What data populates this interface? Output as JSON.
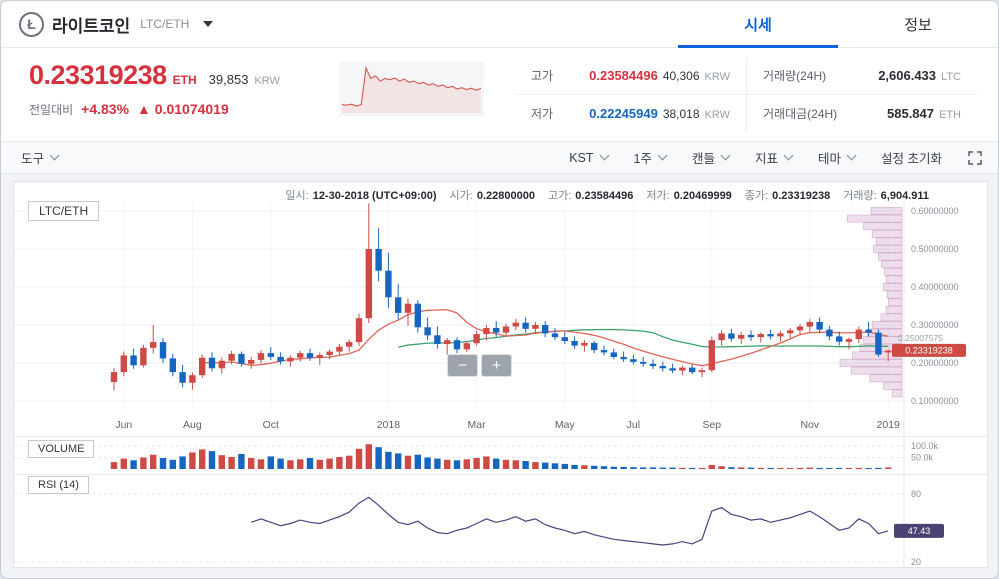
{
  "header": {
    "coin_icon": "Ł",
    "coin_name": "라이트코인",
    "pair": "LTC/ETH",
    "tabs": [
      {
        "label": "시세"
      },
      {
        "label": "정보"
      }
    ]
  },
  "summary": {
    "price": "0.23319238",
    "price_unit": "ETH",
    "price_krw": "39,853",
    "price_krw_unit": "KRW",
    "change_label": "전일대비",
    "change_percent": "+4.83%",
    "change_amount": "▲ 0.01074019",
    "stats": {
      "high_label": "고가",
      "high_value": "0.23584496",
      "high_krw": "40,306",
      "high_krw_unit": "KRW",
      "low_label": "저가",
      "low_value": "0.22245949",
      "low_krw": "38,018",
      "low_krw_unit": "KRW",
      "volume_label": "거래량(24H)",
      "volume_value": "2,606.433",
      "volume_unit": "LTC",
      "turnover_label": "거래대금(24H)",
      "turnover_value": "585.847",
      "turnover_unit": "ETH"
    }
  },
  "toolbar": {
    "tools": "도구",
    "timezone": "KST",
    "interval": "1주",
    "candle_type": "캔들",
    "indicators": "지표",
    "theme": "테마",
    "reset": "설정 초기화"
  },
  "zoom": {
    "out": "−",
    "in": "+"
  },
  "chart_header": {
    "pair_tag": "LTC/ETH",
    "items": [
      {
        "label": "일시:",
        "value": "12-30-2018 (UTC+09:00)"
      },
      {
        "label": "시가:",
        "value": "0.22800000"
      },
      {
        "label": "고가:",
        "value": "0.23584496"
      },
      {
        "label": "저가:",
        "value": "0.20469999"
      },
      {
        "label": "종가:",
        "value": "0.23319238"
      },
      {
        "label": "거래량:",
        "value": "6,904.911"
      }
    ]
  },
  "panels": {
    "volume_label": "VOLUME",
    "rsi_label": "RSI (14)"
  },
  "chart_data": {
    "type": "candlestick",
    "pair": "LTC/ETH",
    "interval": "1주",
    "colors": {
      "up": "#cd4a45",
      "down": "#1666c0",
      "ma_red": "#e0645a",
      "ma_green": "#39a36c",
      "rsi": "#4a4380",
      "profile_fill": "rgba(213,171,206,0.40)",
      "profile_stroke": "rgba(189,136,182,0.55)"
    },
    "y_axis": [
      {
        "value": 0.6,
        "label": "0.60000000"
      },
      {
        "value": 0.5,
        "label": "0.50000000"
      },
      {
        "value": 0.4,
        "label": "0.40000000"
      },
      {
        "value": 0.3,
        "label": "0.30000000"
      },
      {
        "value": 0.2,
        "label": "0.20000000"
      },
      {
        "value": 0.1,
        "label": "0.10000000"
      }
    ],
    "x_axis": [
      {
        "index": 1,
        "label": "Jun"
      },
      {
        "index": 8,
        "label": "Aug"
      },
      {
        "index": 16,
        "label": "Oct"
      },
      {
        "index": 28,
        "label": "2018"
      },
      {
        "index": 37,
        "label": "Mar"
      },
      {
        "index": 46,
        "label": "May"
      },
      {
        "index": 53,
        "label": "Jul"
      },
      {
        "index": 61,
        "label": "Sep"
      },
      {
        "index": 71,
        "label": "Nov"
      },
      {
        "index": 79,
        "label": "2019"
      }
    ],
    "candles": [
      [
        0.15,
        0.186,
        0.128,
        0.176
      ],
      [
        0.176,
        0.23,
        0.165,
        0.22
      ],
      [
        0.22,
        0.238,
        0.185,
        0.194
      ],
      [
        0.194,
        0.248,
        0.188,
        0.24
      ],
      [
        0.24,
        0.3,
        0.225,
        0.255
      ],
      [
        0.255,
        0.265,
        0.2,
        0.212
      ],
      [
        0.212,
        0.224,
        0.165,
        0.176
      ],
      [
        0.176,
        0.195,
        0.136,
        0.148
      ],
      [
        0.148,
        0.175,
        0.13,
        0.168
      ],
      [
        0.168,
        0.222,
        0.16,
        0.214
      ],
      [
        0.214,
        0.228,
        0.178,
        0.186
      ],
      [
        0.186,
        0.215,
        0.172,
        0.206
      ],
      [
        0.206,
        0.232,
        0.196,
        0.224
      ],
      [
        0.224,
        0.23,
        0.19,
        0.198
      ],
      [
        0.198,
        0.216,
        0.185,
        0.208
      ],
      [
        0.208,
        0.234,
        0.198,
        0.226
      ],
      [
        0.226,
        0.242,
        0.208,
        0.216
      ],
      [
        0.216,
        0.228,
        0.196,
        0.204
      ],
      [
        0.204,
        0.22,
        0.19,
        0.214
      ],
      [
        0.214,
        0.232,
        0.204,
        0.226
      ],
      [
        0.226,
        0.238,
        0.206,
        0.213
      ],
      [
        0.213,
        0.228,
        0.195,
        0.221
      ],
      [
        0.221,
        0.236,
        0.21,
        0.23
      ],
      [
        0.23,
        0.25,
        0.22,
        0.243
      ],
      [
        0.243,
        0.262,
        0.23,
        0.255
      ],
      [
        0.255,
        0.33,
        0.245,
        0.318
      ],
      [
        0.318,
        0.62,
        0.305,
        0.5
      ],
      [
        0.5,
        0.555,
        0.415,
        0.443
      ],
      [
        0.443,
        0.49,
        0.345,
        0.373
      ],
      [
        0.373,
        0.408,
        0.315,
        0.332
      ],
      [
        0.332,
        0.37,
        0.298,
        0.356
      ],
      [
        0.356,
        0.365,
        0.28,
        0.294
      ],
      [
        0.294,
        0.32,
        0.26,
        0.273
      ],
      [
        0.273,
        0.296,
        0.238,
        0.25
      ],
      [
        0.25,
        0.266,
        0.222,
        0.26
      ],
      [
        0.26,
        0.268,
        0.226,
        0.236
      ],
      [
        0.236,
        0.258,
        0.228,
        0.252
      ],
      [
        0.252,
        0.284,
        0.246,
        0.276
      ],
      [
        0.276,
        0.3,
        0.26,
        0.292
      ],
      [
        0.292,
        0.31,
        0.268,
        0.28
      ],
      [
        0.28,
        0.304,
        0.27,
        0.296
      ],
      [
        0.296,
        0.316,
        0.286,
        0.306
      ],
      [
        0.306,
        0.32,
        0.28,
        0.29
      ],
      [
        0.29,
        0.308,
        0.276,
        0.3
      ],
      [
        0.3,
        0.31,
        0.268,
        0.278
      ],
      [
        0.278,
        0.292,
        0.26,
        0.268
      ],
      [
        0.268,
        0.282,
        0.25,
        0.258
      ],
      [
        0.258,
        0.27,
        0.238,
        0.246
      ],
      [
        0.246,
        0.26,
        0.23,
        0.253
      ],
      [
        0.253,
        0.258,
        0.226,
        0.234
      ],
      [
        0.234,
        0.246,
        0.22,
        0.228
      ],
      [
        0.228,
        0.238,
        0.21,
        0.216
      ],
      [
        0.216,
        0.23,
        0.203,
        0.21
      ],
      [
        0.21,
        0.222,
        0.196,
        0.203
      ],
      [
        0.203,
        0.216,
        0.19,
        0.198
      ],
      [
        0.198,
        0.21,
        0.184,
        0.192
      ],
      [
        0.192,
        0.204,
        0.178,
        0.186
      ],
      [
        0.186,
        0.198,
        0.173,
        0.18
      ],
      [
        0.18,
        0.193,
        0.168,
        0.188
      ],
      [
        0.188,
        0.196,
        0.17,
        0.176
      ],
      [
        0.176,
        0.188,
        0.163,
        0.181
      ],
      [
        0.181,
        0.27,
        0.176,
        0.26
      ],
      [
        0.26,
        0.286,
        0.246,
        0.278
      ],
      [
        0.278,
        0.29,
        0.256,
        0.264
      ],
      [
        0.264,
        0.282,
        0.25,
        0.274
      ],
      [
        0.274,
        0.286,
        0.258,
        0.268
      ],
      [
        0.268,
        0.28,
        0.254,
        0.276
      ],
      [
        0.276,
        0.288,
        0.262,
        0.27
      ],
      [
        0.27,
        0.284,
        0.256,
        0.278
      ],
      [
        0.278,
        0.292,
        0.266,
        0.286
      ],
      [
        0.286,
        0.302,
        0.272,
        0.296
      ],
      [
        0.296,
        0.315,
        0.283,
        0.308
      ],
      [
        0.308,
        0.32,
        0.278,
        0.288
      ],
      [
        0.288,
        0.298,
        0.26,
        0.27
      ],
      [
        0.27,
        0.283,
        0.246,
        0.256
      ],
      [
        0.256,
        0.268,
        0.236,
        0.263
      ],
      [
        0.263,
        0.296,
        0.253,
        0.288
      ],
      [
        0.288,
        0.308,
        0.27,
        0.28
      ],
      [
        0.28,
        0.288,
        0.216,
        0.222
      ],
      [
        0.228,
        0.236,
        0.205,
        0.233
      ]
    ],
    "volumes": [
      30,
      45,
      38,
      50,
      62,
      48,
      40,
      55,
      72,
      85,
      78,
      60,
      52,
      65,
      48,
      42,
      55,
      45,
      38,
      42,
      48,
      40,
      45,
      52,
      58,
      88,
      108,
      95,
      75,
      68,
      58,
      62,
      50,
      45,
      40,
      38,
      42,
      48,
      55,
      45,
      40,
      38,
      35,
      30,
      28,
      25,
      22,
      18,
      16,
      14,
      12,
      10,
      9,
      8,
      7,
      7,
      6,
      6,
      5,
      5,
      5,
      18,
      12,
      8,
      7,
      6,
      5,
      5,
      4,
      4,
      5,
      6,
      5,
      4,
      4,
      3,
      5,
      4,
      5,
      7
    ],
    "volume_axis": [
      {
        "value": 100,
        "label": "100.0k"
      },
      {
        "value": 50,
        "label": "50.0k"
      }
    ],
    "rsi": {
      "start_index": 14,
      "values": [
        55,
        58,
        55,
        52,
        54,
        57,
        55,
        54,
        57,
        60,
        64,
        72,
        77,
        70,
        62,
        55,
        53,
        56,
        50,
        46,
        45,
        48,
        50,
        54,
        58,
        55,
        57,
        60,
        56,
        58,
        53,
        50,
        48,
        45,
        47,
        44,
        42,
        40,
        39,
        38,
        37,
        36,
        35,
        36,
        38,
        36,
        40,
        65,
        68,
        62,
        60,
        57,
        58,
        55,
        57,
        59,
        62,
        65,
        60,
        54,
        48,
        50,
        58,
        54,
        45,
        47.43
      ],
      "axis": [
        {
          "value": 80,
          "label": "80"
        },
        {
          "value": 20,
          "label": "20"
        }
      ],
      "current": "47.43"
    },
    "volume_profile": [
      {
        "price": 0.6,
        "value": 0.5
      },
      {
        "price": 0.58,
        "value": 0.88
      },
      {
        "price": 0.56,
        "value": 0.62
      },
      {
        "price": 0.54,
        "value": 0.48
      },
      {
        "price": 0.52,
        "value": 0.42
      },
      {
        "price": 0.5,
        "value": 0.46
      },
      {
        "price": 0.48,
        "value": 0.38
      },
      {
        "price": 0.46,
        "value": 0.33
      },
      {
        "price": 0.44,
        "value": 0.28
      },
      {
        "price": 0.42,
        "value": 0.26
      },
      {
        "price": 0.4,
        "value": 0.3
      },
      {
        "price": 0.38,
        "value": 0.24
      },
      {
        "price": 0.36,
        "value": 0.22
      },
      {
        "price": 0.34,
        "value": 0.26
      },
      {
        "price": 0.32,
        "value": 0.34
      },
      {
        "price": 0.3,
        "value": 0.48
      },
      {
        "price": 0.28,
        "value": 0.56
      },
      {
        "price": 0.26,
        "value": 0.62
      },
      {
        "price": 0.24,
        "value": 0.68
      },
      {
        "price": 0.22,
        "value": 0.8
      },
      {
        "price": 0.2,
        "value": 1.0
      },
      {
        "price": 0.18,
        "value": 0.82
      },
      {
        "price": 0.16,
        "value": 0.52
      },
      {
        "price": 0.14,
        "value": 0.3
      },
      {
        "price": 0.12,
        "value": 0.16
      }
    ],
    "price_tag": {
      "value": 0.23319238,
      "label": "0.23319238"
    },
    "ma_tag": {
      "value": 0.2501,
      "label": "0.25007575"
    },
    "sparkline": [
      0.17,
      0.168,
      0.172,
      0.165,
      0.17,
      0.31,
      0.27,
      0.28,
      0.26,
      0.27,
      0.265,
      0.272,
      0.26,
      0.268,
      0.255,
      0.26,
      0.25,
      0.255,
      0.245,
      0.25,
      0.24,
      0.245,
      0.235,
      0.24,
      0.23,
      0.235,
      0.228,
      0.233,
      0.225,
      0.233
    ]
  }
}
